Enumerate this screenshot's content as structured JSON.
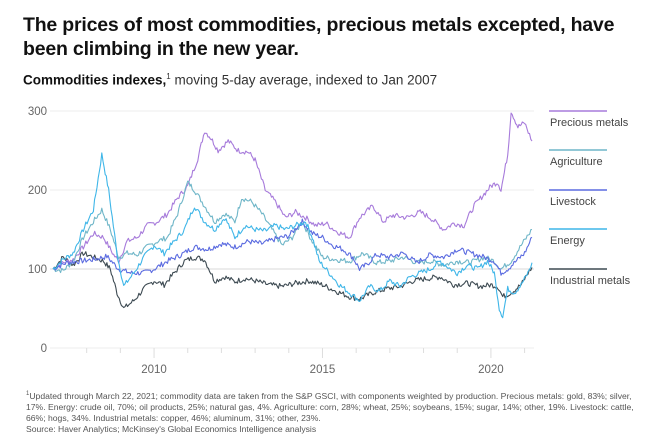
{
  "header": {
    "title": "The prices of most commodities, precious metals excepted, have been climbing in the new year.",
    "subtitle_bold": "Commodities indexes,",
    "subtitle_sup": "1",
    "subtitle_rest": " moving 5-day average, indexed to Jan 2007"
  },
  "footnote": {
    "sup": "1",
    "text": "Updated through March 22, 2021; commodity data are taken from the S&P GSCI, with components weighted by production. Precious metals: gold, 83%; silver, 17%. Energy: crude oil, 70%; oil products, 25%; natural gas, 4%. Agriculture: corn, 28%; wheat, 25%; soybeans, 15%; sugar, 14%; other, 19%. Livestock: cattle, 66%; hogs, 34%. Industrial metals: copper, 46%; aluminum, 31%; other, 23%.",
    "source": "Source: Haver Analytics; McKinsey's Global Economics Intelligence analysis"
  },
  "chart_data": {
    "type": "line",
    "title": "Commodities indexes, moving 5-day average, indexed to Jan 2007",
    "xlabel": "",
    "ylabel": "",
    "xlim": [
      2007.0,
      2021.22
    ],
    "ylim": [
      0,
      300
    ],
    "yticks": [
      0,
      100,
      200,
      300
    ],
    "xtick_labels": [
      "2010",
      "2015",
      "2020"
    ],
    "xtick_label_values": [
      2010,
      2015,
      2020
    ],
    "xtick_minor_values": [
      2008,
      2009,
      2010,
      2011,
      2012,
      2013,
      2014,
      2015,
      2016,
      2017,
      2018,
      2019,
      2020,
      2021
    ],
    "grid": true,
    "reference_line": 100,
    "legend_position": "right",
    "series": [
      {
        "name": "Precious metals",
        "color": "#a77bdb",
        "x": [
          2007.0,
          2007.3,
          2007.6,
          2007.9,
          2008.2,
          2008.5,
          2008.8,
          2008.95,
          2009.2,
          2009.5,
          2009.8,
          2010.1,
          2010.4,
          2010.7,
          2011.0,
          2011.3,
          2011.5,
          2011.7,
          2011.9,
          2012.2,
          2012.5,
          2012.8,
          2013.0,
          2013.3,
          2013.6,
          2013.9,
          2014.2,
          2014.5,
          2014.8,
          2015.1,
          2015.4,
          2015.8,
          2016.1,
          2016.5,
          2016.8,
          2017.1,
          2017.5,
          2017.9,
          2018.2,
          2018.6,
          2018.9,
          2019.2,
          2019.5,
          2019.8,
          2020.0,
          2020.2,
          2020.3,
          2020.5,
          2020.6,
          2020.8,
          2021.0,
          2021.22
        ],
        "values": [
          100,
          108,
          112,
          128,
          145,
          140,
          118,
          110,
          135,
          140,
          155,
          160,
          170,
          190,
          205,
          240,
          275,
          265,
          250,
          262,
          250,
          248,
          238,
          200,
          185,
          165,
          172,
          165,
          155,
          158,
          148,
          140,
          165,
          180,
          160,
          168,
          165,
          172,
          165,
          150,
          158,
          155,
          180,
          195,
          205,
          210,
          200,
          245,
          300,
          280,
          285,
          262
        ]
      },
      {
        "name": "Agriculture",
        "color": "#6fb6c8",
        "x": [
          2007.0,
          2007.3,
          2007.6,
          2007.9,
          2008.2,
          2008.45,
          2008.7,
          2008.95,
          2009.2,
          2009.5,
          2009.8,
          2010.1,
          2010.4,
          2010.7,
          2011.0,
          2011.2,
          2011.5,
          2011.8,
          2012.1,
          2012.4,
          2012.6,
          2012.9,
          2013.2,
          2013.5,
          2013.8,
          2014.1,
          2014.4,
          2014.7,
          2015.0,
          2015.4,
          2015.8,
          2016.2,
          2016.6,
          2017.0,
          2017.4,
          2017.8,
          2018.2,
          2018.6,
          2019.0,
          2019.4,
          2019.8,
          2020.1,
          2020.3,
          2020.6,
          2020.9,
          2021.22
        ],
        "values": [
          100,
          98,
          110,
          140,
          160,
          175,
          150,
          115,
          120,
          118,
          128,
          135,
          140,
          170,
          210,
          200,
          180,
          160,
          170,
          160,
          190,
          185,
          170,
          150,
          130,
          140,
          160,
          135,
          115,
          112,
          110,
          120,
          108,
          110,
          115,
          108,
          110,
          105,
          110,
          108,
          115,
          110,
          100,
          110,
          130,
          150
        ]
      },
      {
        "name": "Livestock",
        "color": "#5b6be0",
        "x": [
          2007.0,
          2007.4,
          2007.8,
          2008.2,
          2008.6,
          2008.95,
          2009.3,
          2009.7,
          2010.0,
          2010.4,
          2010.8,
          2011.2,
          2011.6,
          2012.0,
          2012.4,
          2012.8,
          2013.2,
          2013.6,
          2014.0,
          2014.4,
          2014.7,
          2015.0,
          2015.3,
          2015.6,
          2015.9,
          2016.1,
          2016.3,
          2016.6,
          2017.0,
          2017.4,
          2017.8,
          2018.2,
          2018.6,
          2019.0,
          2019.4,
          2019.8,
          2020.1,
          2020.3,
          2020.5,
          2020.8,
          2021.0,
          2021.22
        ],
        "values": [
          100,
          108,
          110,
          112,
          116,
          100,
          95,
          95,
          100,
          110,
          118,
          128,
          125,
          132,
          128,
          135,
          132,
          138,
          142,
          160,
          145,
          140,
          130,
          125,
          115,
          100,
          105,
          118,
          115,
          120,
          108,
          118,
          115,
          125,
          120,
          115,
          110,
          95,
          100,
          112,
          120,
          140
        ]
      },
      {
        "name": "Energy",
        "color": "#3fb6e8",
        "x": [
          2007.0,
          2007.3,
          2007.6,
          2007.9,
          2008.2,
          2008.45,
          2008.65,
          2008.9,
          2009.1,
          2009.4,
          2009.7,
          2010.0,
          2010.3,
          2010.6,
          2010.9,
          2011.2,
          2011.5,
          2011.8,
          2012.1,
          2012.4,
          2012.7,
          2013.0,
          2013.3,
          2013.6,
          2013.9,
          2014.2,
          2014.5,
          2014.7,
          2014.9,
          2015.2,
          2015.5,
          2015.8,
          2016.1,
          2016.4,
          2016.7,
          2017.0,
          2017.3,
          2017.6,
          2017.9,
          2018.2,
          2018.5,
          2018.8,
          2019.0,
          2019.3,
          2019.6,
          2019.9,
          2020.1,
          2020.25,
          2020.35,
          2020.5,
          2020.7,
          2020.9,
          2021.1,
          2021.22
        ],
        "values": [
          100,
          112,
          120,
          150,
          175,
          245,
          200,
          120,
          78,
          95,
          115,
          130,
          120,
          135,
          150,
          180,
          160,
          150,
          165,
          140,
          155,
          150,
          148,
          155,
          150,
          155,
          160,
          140,
          110,
          95,
          80,
          70,
          60,
          78,
          72,
          85,
          78,
          90,
          95,
          100,
          110,
          100,
          95,
          105,
          100,
          110,
          95,
          50,
          40,
          75,
          70,
          80,
          95,
          108
        ]
      },
      {
        "name": "Industrial metals",
        "color": "#3d4a52",
        "x": [
          2007.0,
          2007.3,
          2007.6,
          2007.9,
          2008.2,
          2008.5,
          2008.7,
          2008.9,
          2009.1,
          2009.4,
          2009.7,
          2010.0,
          2010.3,
          2010.6,
          2010.9,
          2011.2,
          2011.5,
          2011.8,
          2012.1,
          2012.4,
          2012.7,
          2013.0,
          2013.4,
          2013.8,
          2014.2,
          2014.6,
          2015.0,
          2015.4,
          2015.8,
          2016.1,
          2016.5,
          2016.9,
          2017.3,
          2017.7,
          2018.1,
          2018.5,
          2018.9,
          2019.3,
          2019.7,
          2020.0,
          2020.2,
          2020.35,
          2020.6,
          2020.9,
          2021.1,
          2021.22
        ],
        "values": [
          100,
          115,
          105,
          120,
          115,
          110,
          100,
          70,
          50,
          60,
          75,
          85,
          80,
          95,
          110,
          115,
          112,
          85,
          90,
          84,
          88,
          85,
          80,
          78,
          82,
          85,
          80,
          72,
          65,
          62,
          70,
          75,
          78,
          85,
          88,
          90,
          80,
          82,
          78,
          80,
          78,
          65,
          70,
          80,
          95,
          102
        ]
      }
    ]
  }
}
